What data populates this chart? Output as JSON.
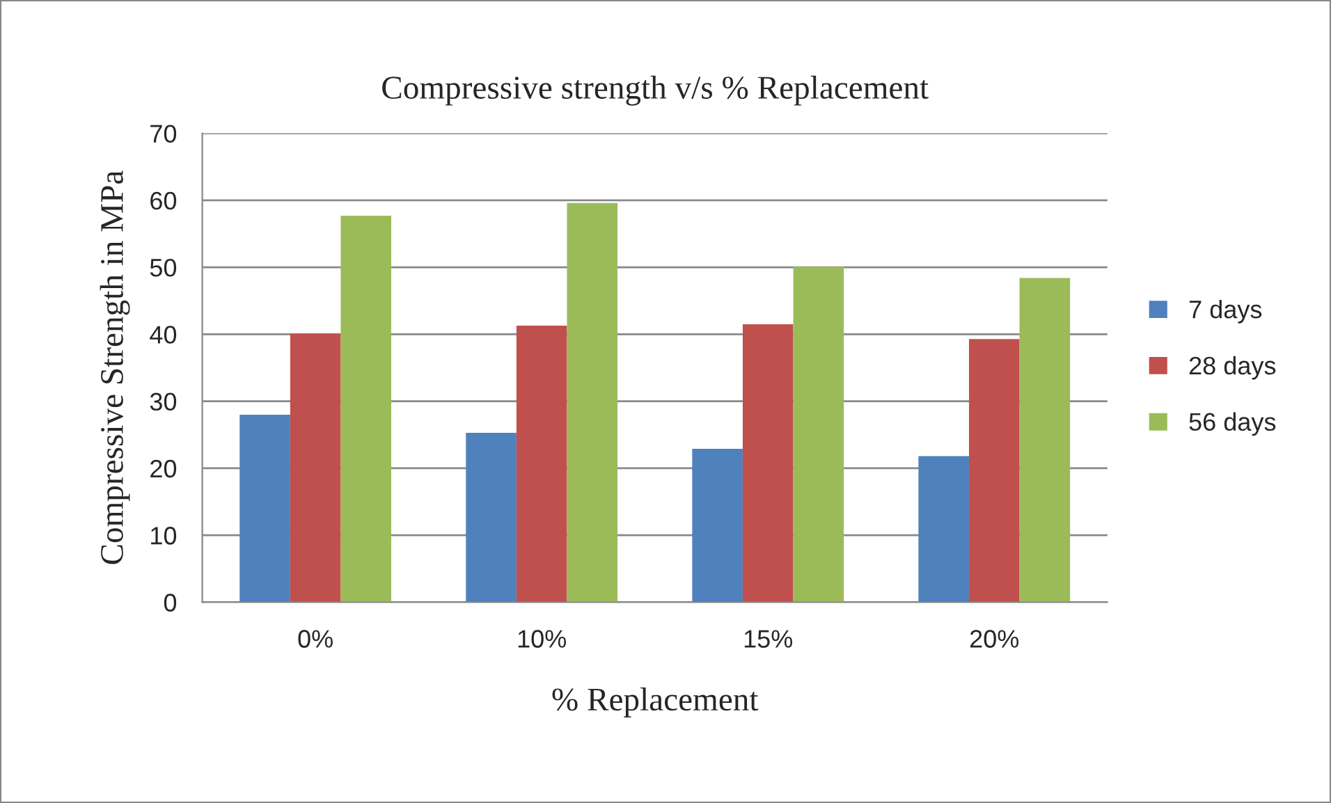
{
  "chart_data": {
    "type": "bar",
    "title": "Compressive strength v/s % Replacement",
    "xlabel": "% Replacement",
    "ylabel": "Compressive Strength in MPa",
    "categories": [
      "0%",
      "10%",
      "15%",
      "20%"
    ],
    "series": [
      {
        "name": "7 days",
        "color": "#4f81bd",
        "values": [
          28.0,
          25.3,
          22.9,
          21.8
        ]
      },
      {
        "name": "28 days",
        "color": "#c0504d",
        "values": [
          40.1,
          41.3,
          41.5,
          39.3
        ]
      },
      {
        "name": "56 days",
        "color": "#9bbb59",
        "values": [
          57.7,
          59.6,
          50.1,
          48.4
        ]
      }
    ],
    "ylim": [
      0,
      70
    ],
    "yticks": [
      0,
      10,
      20,
      30,
      40,
      50,
      60,
      70
    ],
    "grid": "y",
    "legend": "right"
  }
}
